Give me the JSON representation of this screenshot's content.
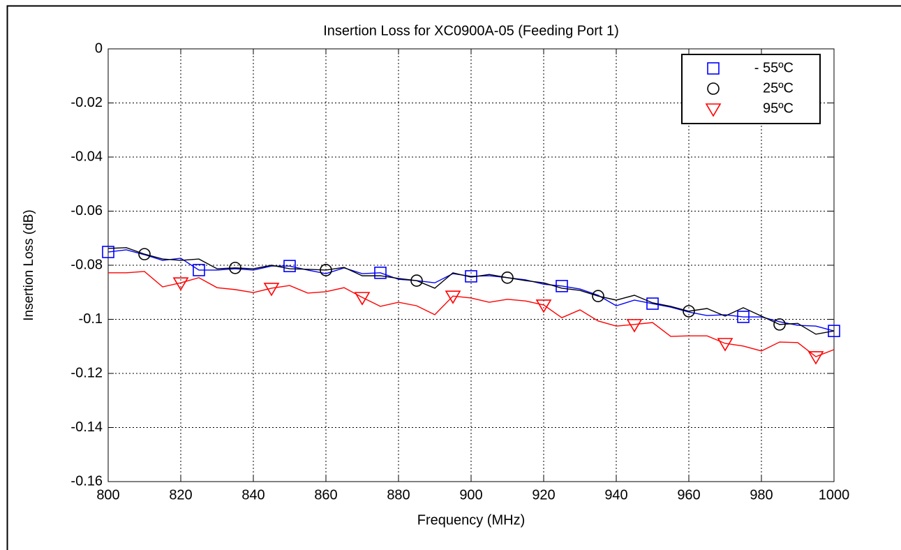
{
  "chart_data": {
    "type": "line",
    "title": "Insertion Loss for XC0900A-05 (Feeding Port 1)",
    "xlabel": "Frequency (MHz)",
    "ylabel": "Insertion Loss (dB)",
    "x": [
      800,
      805,
      810,
      815,
      820,
      825,
      830,
      835,
      840,
      845,
      850,
      855,
      860,
      865,
      870,
      875,
      880,
      885,
      890,
      895,
      900,
      905,
      910,
      915,
      920,
      925,
      930,
      935,
      940,
      945,
      950,
      955,
      960,
      965,
      970,
      975,
      980,
      985,
      990,
      995,
      1000
    ],
    "series": [
      {
        "name": "- 55ºC",
        "color": "#0000ff",
        "marker": "square",
        "marker_every": 5,
        "marker_offset": 0,
        "values": [
          -0.0751,
          -0.0743,
          -0.0761,
          -0.0782,
          -0.0774,
          -0.0818,
          -0.0818,
          -0.0813,
          -0.0818,
          -0.0803,
          -0.0803,
          -0.0818,
          -0.0831,
          -0.081,
          -0.0831,
          -0.0828,
          -0.0852,
          -0.0857,
          -0.0865,
          -0.0831,
          -0.0841,
          -0.0839,
          -0.0846,
          -0.0854,
          -0.087,
          -0.0877,
          -0.0888,
          -0.0911,
          -0.095,
          -0.0929,
          -0.0942,
          -0.0955,
          -0.0973,
          -0.0986,
          -0.0983,
          -0.0991,
          -0.0991,
          -0.1009,
          -0.1022,
          -0.1025,
          -0.1043
        ]
      },
      {
        "name": "25ºC",
        "color": "#000000",
        "marker": "circle",
        "marker_every": 5,
        "marker_offset": 2,
        "values": [
          -0.0738,
          -0.0735,
          -0.0759,
          -0.0777,
          -0.0782,
          -0.0777,
          -0.0813,
          -0.081,
          -0.0813,
          -0.08,
          -0.0813,
          -0.0815,
          -0.0818,
          -0.0808,
          -0.0839,
          -0.0839,
          -0.0849,
          -0.0857,
          -0.0885,
          -0.0828,
          -0.0844,
          -0.0834,
          -0.0846,
          -0.0857,
          -0.0865,
          -0.0885,
          -0.0893,
          -0.0914,
          -0.0929,
          -0.0911,
          -0.0939,
          -0.0952,
          -0.097,
          -0.096,
          -0.0988,
          -0.0957,
          -0.0988,
          -0.1019,
          -0.1015,
          -0.1055,
          -0.1043
        ]
      },
      {
        "name": "95ºC",
        "color": "#ff0000",
        "marker": "triangle-down",
        "marker_every": 5,
        "marker_offset": 4,
        "values": [
          -0.0828,
          -0.0828,
          -0.0823,
          -0.088,
          -0.0865,
          -0.0846,
          -0.0883,
          -0.089,
          -0.0901,
          -0.0885,
          -0.0875,
          -0.0903,
          -0.0898,
          -0.0883,
          -0.0919,
          -0.0952,
          -0.0937,
          -0.095,
          -0.0983,
          -0.0914,
          -0.0921,
          -0.0937,
          -0.0926,
          -0.0932,
          -0.0947,
          -0.0994,
          -0.0965,
          -0.1006,
          -0.1025,
          -0.1019,
          -0.1012,
          -0.1063,
          -0.1061,
          -0.1061,
          -0.1089,
          -0.1099,
          -0.1117,
          -0.1084,
          -0.1086,
          -0.1138,
          -0.1112
        ]
      }
    ],
    "xlim": [
      800,
      1000
    ],
    "xticks": [
      800,
      820,
      840,
      860,
      880,
      900,
      920,
      940,
      960,
      980,
      1000
    ],
    "ylim": [
      -0.16,
      0
    ],
    "yticks": [
      0,
      -0.02,
      -0.04,
      -0.06,
      -0.08,
      -0.1,
      -0.12,
      -0.14,
      -0.16
    ],
    "grid": true,
    "legend": "upper right"
  }
}
